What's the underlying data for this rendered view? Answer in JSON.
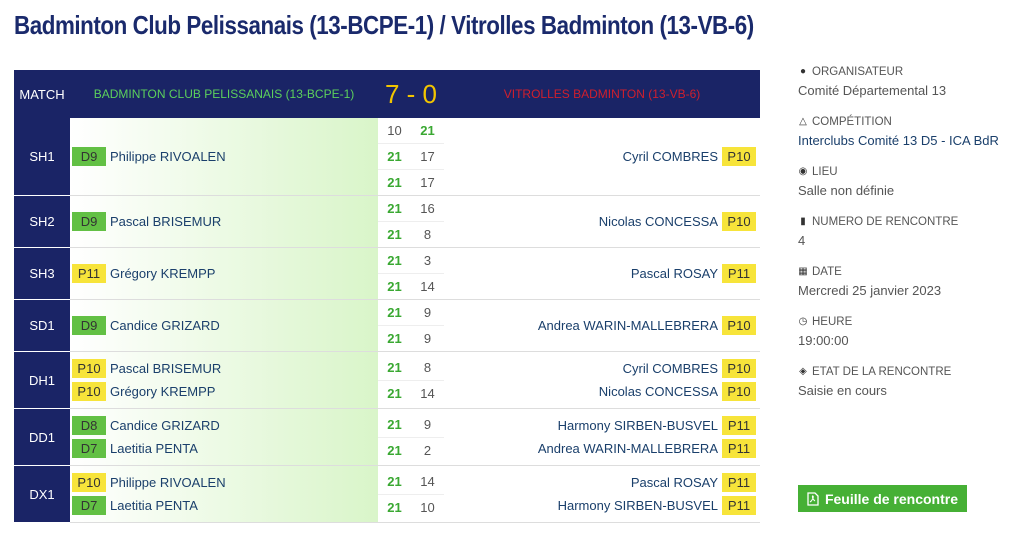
{
  "page_title": "Badminton Club Pelissanais (13-BCPE-1) / Vitrolles Badminton (13-VB-6)",
  "header": {
    "match_label": "MATCH",
    "home_team": "BADMINTON CLUB PELISSANAIS (13-BCPE-1)",
    "score": "7 - 0",
    "away_team": "VITROLLES BADMINTON (13-VB-6)"
  },
  "matches": [
    {
      "code": "SH1",
      "home": [
        {
          "rank": "D9",
          "rank_color": "green",
          "name": "Philippe RIVOALEN"
        }
      ],
      "away": [
        {
          "rank": "P10",
          "rank_color": "yellow",
          "name": "Cyril COMBRES"
        }
      ],
      "sets": [
        {
          "h": "10",
          "a": "21",
          "winner": "a"
        },
        {
          "h": "21",
          "a": "17",
          "winner": "h"
        },
        {
          "h": "21",
          "a": "17",
          "winner": "h"
        }
      ]
    },
    {
      "code": "SH2",
      "home": [
        {
          "rank": "D9",
          "rank_color": "green",
          "name": "Pascal BRISEMUR"
        }
      ],
      "away": [
        {
          "rank": "P10",
          "rank_color": "yellow",
          "name": "Nicolas CONCESSA"
        }
      ],
      "sets": [
        {
          "h": "21",
          "a": "16",
          "winner": "h"
        },
        {
          "h": "21",
          "a": "8",
          "winner": "h"
        }
      ]
    },
    {
      "code": "SH3",
      "home": [
        {
          "rank": "P11",
          "rank_color": "yellow",
          "name": "Grégory KREMPP"
        }
      ],
      "away": [
        {
          "rank": "P11",
          "rank_color": "yellow",
          "name": "Pascal ROSAY"
        }
      ],
      "sets": [
        {
          "h": "21",
          "a": "3",
          "winner": "h"
        },
        {
          "h": "21",
          "a": "14",
          "winner": "h"
        }
      ]
    },
    {
      "code": "SD1",
      "home": [
        {
          "rank": "D9",
          "rank_color": "green",
          "name": "Candice GRIZARD"
        }
      ],
      "away": [
        {
          "rank": "P10",
          "rank_color": "yellow",
          "name": "Andrea WARIN-MALLEBRERA"
        }
      ],
      "sets": [
        {
          "h": "21",
          "a": "9",
          "winner": "h"
        },
        {
          "h": "21",
          "a": "9",
          "winner": "h"
        }
      ]
    },
    {
      "code": "DH1",
      "home": [
        {
          "rank": "P10",
          "rank_color": "yellow",
          "name": "Pascal BRISEMUR"
        },
        {
          "rank": "P10",
          "rank_color": "yellow",
          "name": "Grégory KREMPP"
        }
      ],
      "away": [
        {
          "rank": "P10",
          "rank_color": "yellow",
          "name": "Cyril COMBRES"
        },
        {
          "rank": "P10",
          "rank_color": "yellow",
          "name": "Nicolas CONCESSA"
        }
      ],
      "sets": [
        {
          "h": "21",
          "a": "8",
          "winner": "h"
        },
        {
          "h": "21",
          "a": "14",
          "winner": "h"
        }
      ]
    },
    {
      "code": "DD1",
      "home": [
        {
          "rank": "D8",
          "rank_color": "green",
          "name": "Candice GRIZARD"
        },
        {
          "rank": "D7",
          "rank_color": "green",
          "name": "Laetitia PENTA"
        }
      ],
      "away": [
        {
          "rank": "P11",
          "rank_color": "yellow",
          "name": "Harmony SIRBEN-BUSVEL"
        },
        {
          "rank": "P11",
          "rank_color": "yellow",
          "name": "Andrea WARIN-MALLEBRERA"
        }
      ],
      "sets": [
        {
          "h": "21",
          "a": "9",
          "winner": "h"
        },
        {
          "h": "21",
          "a": "2",
          "winner": "h"
        }
      ]
    },
    {
      "code": "DX1",
      "home": [
        {
          "rank": "P10",
          "rank_color": "yellow",
          "name": "Philippe RIVOALEN"
        },
        {
          "rank": "D7",
          "rank_color": "green",
          "name": "Laetitia PENTA"
        }
      ],
      "away": [
        {
          "rank": "P11",
          "rank_color": "yellow",
          "name": "Pascal ROSAY"
        },
        {
          "rank": "P11",
          "rank_color": "yellow",
          "name": "Harmony SIRBEN-BUSVEL"
        }
      ],
      "sets": [
        {
          "h": "21",
          "a": "14",
          "winner": "h"
        },
        {
          "h": "21",
          "a": "10",
          "winner": "h"
        }
      ]
    }
  ],
  "sidebar": {
    "organisateur": {
      "label": "ORGANISATEUR",
      "value": "Comité Départemental 13",
      "icon": "users-icon"
    },
    "competition": {
      "label": "COMPÉTITION",
      "value": "Interclubs Comité 13 D5 - ICA BdR",
      "icon": "trophy-icon"
    },
    "lieu": {
      "label": "LIEU",
      "value": "Salle non définie",
      "icon": "map-marker-icon"
    },
    "numero": {
      "label": "NUMERO DE RENCONTRE",
      "value": "4",
      "icon": "bookmark-icon"
    },
    "date": {
      "label": "DATE",
      "value": "Mercredi 25 janvier 2023",
      "icon": "calendar-icon"
    },
    "heure": {
      "label": "HEURE",
      "value": "19:00:00",
      "icon": "clock-icon"
    },
    "etat": {
      "label": "ETAT DE LA RENCONTRE",
      "value": "Saisie en cours",
      "icon": "tag-icon"
    }
  },
  "feuille_button": {
    "label": "Feuille de rencontre",
    "icon": "pdf-file-icon"
  },
  "colors": {
    "navy": "#1a2466",
    "green_rank": "#62c044",
    "yellow_rank": "#f7e43a",
    "score_gold": "#f2c500",
    "away_red": "#d01f2d",
    "home_green": "#5cd05c",
    "button_green": "#46b035"
  }
}
